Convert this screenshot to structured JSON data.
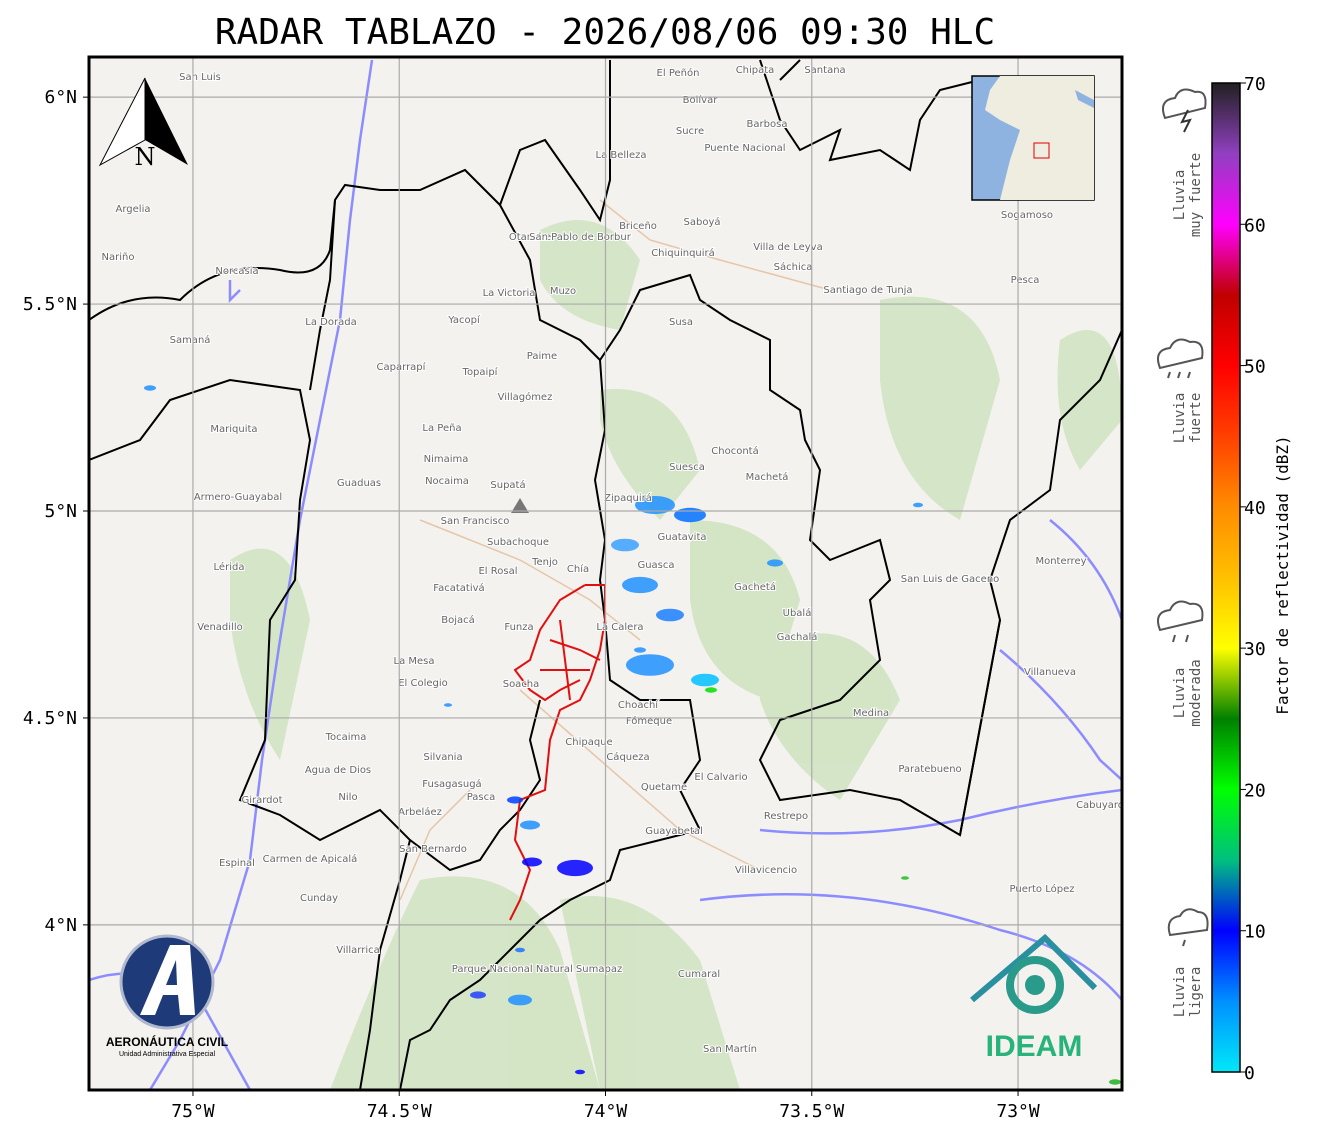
{
  "title": "RADAR TABLAZO - 2026/08/06 09:30 HLC",
  "map": {
    "xlim": [
      -75.252,
      -72.748
    ],
    "ylim": [
      3.601,
      6.097
    ],
    "xticks": [
      {
        "value": -75,
        "label": "75°W"
      },
      {
        "value": -74.5,
        "label": "74.5°W"
      },
      {
        "value": -74,
        "label": "74°W"
      },
      {
        "value": -73.5,
        "label": "73.5°W"
      },
      {
        "value": -73,
        "label": "73°W"
      }
    ],
    "yticks": [
      {
        "value": 6,
        "label": "6°N"
      },
      {
        "value": 5.5,
        "label": "5.5°N"
      },
      {
        "value": 5,
        "label": "5°N"
      },
      {
        "value": 4.5,
        "label": "4.5°N"
      },
      {
        "value": 4,
        "label": "4°N"
      }
    ],
    "grid": true,
    "compass": "N",
    "places": [
      "San Luis",
      "El Peñón",
      "Chipata",
      "Santana",
      "Bolívar",
      "Barbosa",
      "Sucre",
      "Puente Nacional",
      "La Belleza",
      "Argelia",
      "Nariño",
      "Norcasia",
      "Otanche",
      "San Pablo de Borbur",
      "Briceño",
      "Saboyá",
      "Chiquinquirá",
      "Villa de Leyva",
      "Sáchica",
      "Santiago de Tunja",
      "Sogamoso",
      "Pesca",
      "La Victoria",
      "Muzo",
      "Susa",
      "La Dorada",
      "Samaná",
      "Yacopí",
      "Caparrapí",
      "Paime",
      "Topaipí",
      "Villagómez",
      "La Peña",
      "Nimaima",
      "Nocaima",
      "Guaduas",
      "Supatá",
      "San Francisco",
      "Zipaquirá",
      "Suesca",
      "Chocontá",
      "Machetá",
      "Guatavita",
      "Subachoque",
      "Tenjo",
      "Chía",
      "El Rosal",
      "Facatativá",
      "Bojacá",
      "Funza",
      "La Calera",
      "Guasca",
      "Gachetá",
      "Ubalá",
      "Gachalá",
      "La Mesa",
      "El Colegio",
      "Soacha",
      "Choachí",
      "Fómeque",
      "Chipaque",
      "Cáqueza",
      "Quetame",
      "Guayabetal",
      "El Calvario",
      "Restrepo",
      "Villavicencio",
      "Medina",
      "Paratebueno",
      "San Luis de Gaceno",
      "Monterrey",
      "Villanueva",
      "Cabuyaro",
      "Puerto López",
      "Fusagasugá",
      "Pasca",
      "Arbeláez",
      "San Bernardo",
      "Silvania",
      "Tocaima",
      "Agua de Dios",
      "Nilo",
      "Girardot",
      "Espinal",
      "Carmen de Apicalá",
      "Cunday",
      "Villarrica",
      "Venadillo",
      "Lérida",
      "Armero-Guayabal",
      "Mariquita",
      "Cumaral",
      "San Martín",
      "Parque Nacional Natural Sumapaz"
    ]
  },
  "colorbar": {
    "label": "Factor de reflectividad (dBZ)",
    "lim": [
      0,
      70
    ],
    "ticks": [
      0,
      10,
      20,
      30,
      40,
      50,
      60,
      70
    ],
    "colors": [
      "#00e8f8",
      "#0090ff",
      "#0000ff",
      "#00c080",
      "#00ff00",
      "#008000",
      "#ffff00",
      "#ffc000",
      "#ff8c00",
      "#ff4000",
      "#ff0000",
      "#c00000",
      "#ff00ff",
      "#9040c0",
      "#202020"
    ]
  },
  "rain_legend": [
    [
      "Lluvia",
      "muy fuerte"
    ],
    [
      "Lluvia",
      "fuerte"
    ],
    [
      "Lluvia",
      "moderada"
    ],
    [
      "Lluvia",
      "ligera"
    ]
  ],
  "logos": {
    "aerocivil": [
      "AERONÁUTICA CIVIL",
      "Unidad Administrativa Especial"
    ],
    "ideam": "IDEAM"
  }
}
